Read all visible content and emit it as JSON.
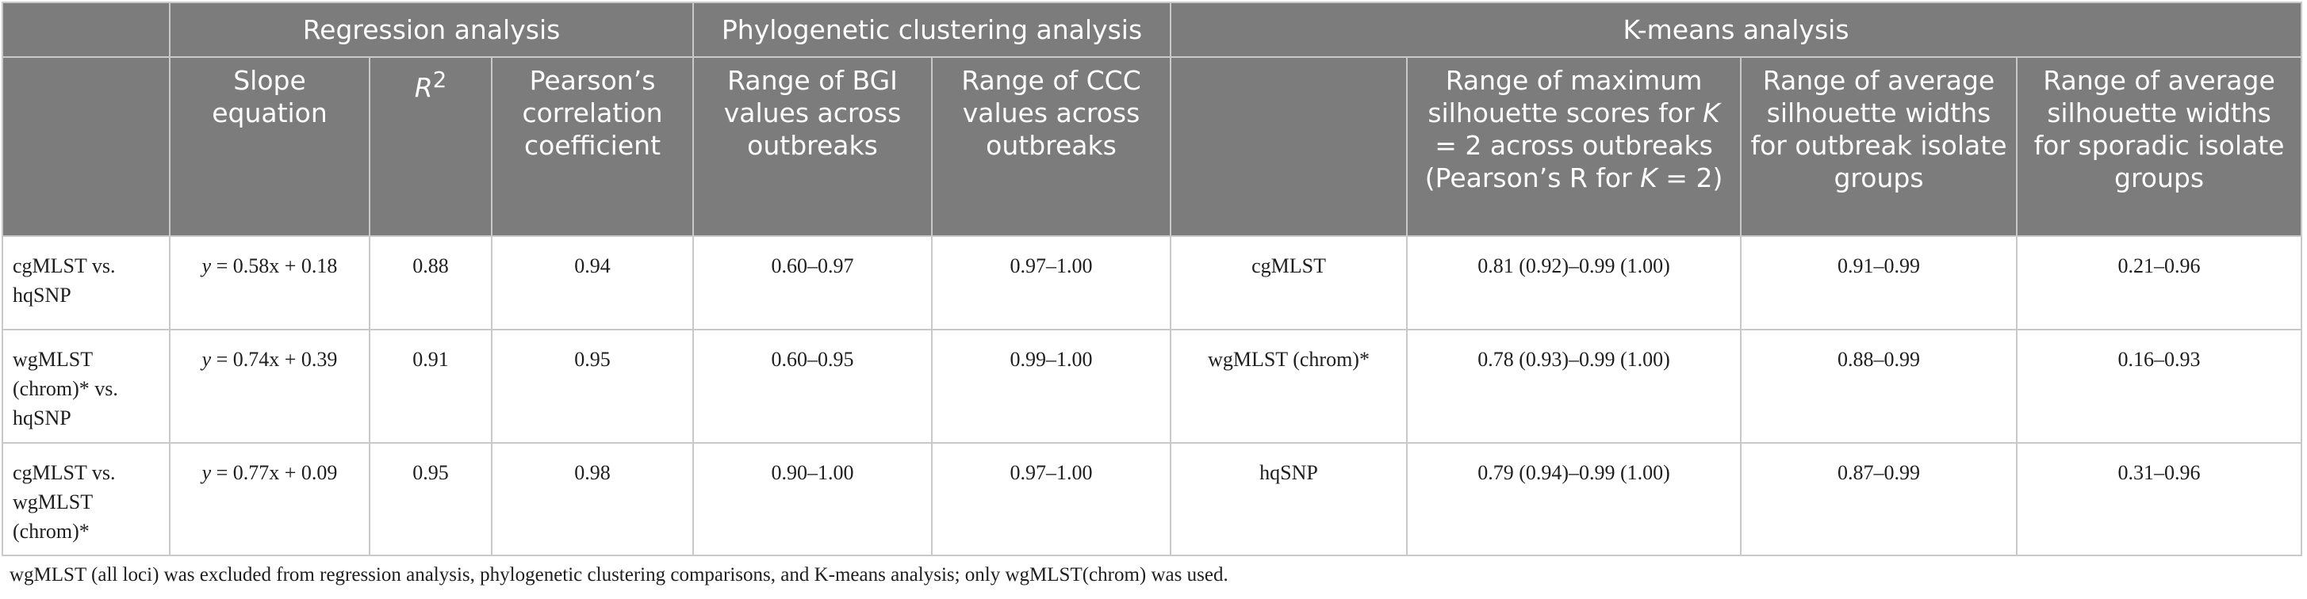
{
  "table": {
    "group_headers": {
      "blank": "",
      "regression": "Regression analysis",
      "phylogenetic": "Phylogenetic clustering analysis",
      "kmeans": "K-means analysis"
    },
    "columns": {
      "row_label": "",
      "slope_equation": "Slope equation",
      "r2_base": "R",
      "r2_sup": "2",
      "pearson": "Pearson’s correlation coefficient",
      "bgi": "Range of BGI values across outbreaks",
      "ccc": "Range of CCC values across outbreaks",
      "kmeans_method": "",
      "silhouette_part1": "Range of maximum silhouette scores for ",
      "silhouette_k1": "K",
      "silhouette_part2": " = 2 across outbreaks (Pearson’s R for ",
      "silhouette_k2": "K",
      "silhouette_part3": " = 2)",
      "outbreak_width": "Range of average silhouette widths for outbreak isolate groups",
      "sporadic_width": "Range of average silhouette widths for sporadic isolate groups"
    },
    "rows": [
      {
        "comparison": "cgMLST vs. hqSNP",
        "eq_var": "y",
        "eq_rest": " = 0.58x + 0.18",
        "r2": "0.88",
        "pearson": "0.94",
        "bgi": "0.60–0.97",
        "ccc": "0.97–1.00",
        "method": "cgMLST",
        "max_silhouette": "0.81 (0.92)–0.99 (1.00)",
        "outbreak_width": "0.91–0.99",
        "sporadic_width": "0.21–0.96"
      },
      {
        "comparison": "wgMLST (chrom)* vs. hqSNP",
        "eq_var": "y",
        "eq_rest": " = 0.74x + 0.39",
        "r2": "0.91",
        "pearson": "0.95",
        "bgi": "0.60–0.95",
        "ccc": "0.99–1.00",
        "method": "wgMLST (chrom)*",
        "max_silhouette": "0.78 (0.93)–0.99 (1.00)",
        "outbreak_width": "0.88–0.99",
        "sporadic_width": "0.16–0.93"
      },
      {
        "comparison": "cgMLST vs. wgMLST (chrom)*",
        "eq_var": "y",
        "eq_rest": " = 0.77x + 0.09",
        "r2": "0.95",
        "pearson": "0.98",
        "bgi": "0.90–1.00",
        "ccc": "0.97–1.00",
        "method": "hqSNP",
        "max_silhouette": "0.79 (0.94)–0.99 (1.00)",
        "outbreak_width": "0.87–0.99",
        "sporadic_width": "0.31–0.96"
      }
    ],
    "colors": {
      "header_bg": "#7c7c7c",
      "header_text": "#ffffff",
      "grid": "#c9c9c9",
      "body_text": "#1e1e1e"
    }
  },
  "footnote": "wgMLST (all loci) was excluded from regression analysis, phylogenetic clustering comparisons, and K-means analysis; only wgMLST(chrom) was used."
}
